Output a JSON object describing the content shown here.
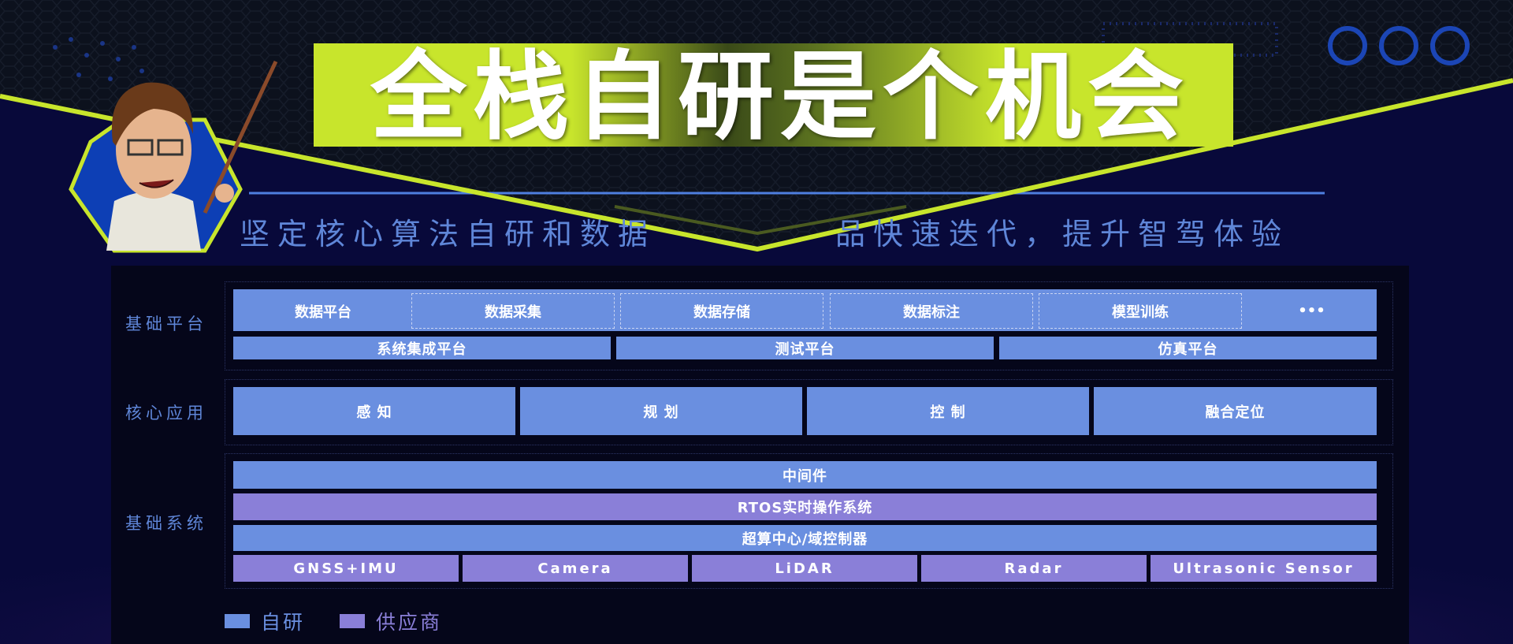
{
  "title": "全栈自研是个机会",
  "subtitle_left": "坚定核心算法自研和数据",
  "subtitle_right": "品快速迭代，提升智驾体验",
  "colors": {
    "self_developed": "#6a8fe0",
    "supplier": "#8a7fd8",
    "accent": "#c8e52c",
    "background": "#08093a"
  },
  "groups": {
    "platform": {
      "label": "基础平台",
      "row1": [
        "数据平台",
        "数据采集",
        "数据存储",
        "数据标注",
        "模型训练",
        "•••"
      ],
      "row2": [
        "系统集成平台",
        "测试平台",
        "仿真平台"
      ]
    },
    "core": {
      "label": "核心应用",
      "items": [
        "感 知",
        "规 划",
        "控 制",
        "融合定位"
      ]
    },
    "system": {
      "label": "基础系统",
      "middleware": "中间件",
      "rtos": "RTOS实时操作系统",
      "compute": "超算中心/域控制器",
      "sensors": [
        "GNSS+IMU",
        "Camera",
        "LiDAR",
        "Radar",
        "Ultrasonic Sensor"
      ]
    }
  },
  "legend": [
    {
      "label": "自研",
      "type": "self_developed"
    },
    {
      "label": "供应商",
      "type": "supplier"
    }
  ]
}
